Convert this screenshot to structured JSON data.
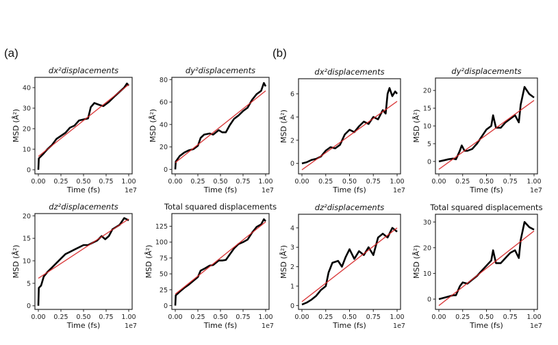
{
  "figure": {
    "panel_labels": [
      "(a)",
      "(b)"
    ]
  },
  "chart_data": [
    {
      "group": "(a)",
      "type": "line",
      "title": "dx²displacements",
      "title_italic": true,
      "xlabel": "Time (fs)",
      "ylabel": "MSD (Å²)",
      "x_offset_label": "1e7",
      "xlim": [
        0,
        1.0
      ],
      "ylim": [
        -2,
        45
      ],
      "xticks": [
        0.0,
        0.25,
        0.5,
        0.75,
        1.0
      ],
      "xtick_labels": [
        "0.00",
        "0.25",
        "0.50",
        "0.75",
        "1.00"
      ],
      "yticks": [
        0,
        10,
        20,
        30,
        40
      ],
      "ytick_labels": [
        "0",
        "10",
        "20",
        "30",
        "40"
      ],
      "series": [
        {
          "name": "MSD",
          "color": "#000000",
          "x": [
            0,
            0.005,
            0.05,
            0.1,
            0.15,
            0.2,
            0.25,
            0.3,
            0.35,
            0.4,
            0.45,
            0.5,
            0.55,
            0.58,
            0.62,
            0.68,
            0.72,
            0.78,
            0.85,
            0.9,
            0.95,
            0.98,
            1.0
          ],
          "y": [
            0,
            5.5,
            7.5,
            10,
            12,
            15,
            16.5,
            18,
            20.5,
            21.5,
            24,
            24.5,
            25,
            30.5,
            32.5,
            31.5,
            31,
            33,
            36,
            38,
            40,
            42,
            41
          ]
        },
        {
          "name": "Linear fit",
          "color": "#d62728",
          "x": [
            0,
            1.0
          ],
          "y": [
            6.5,
            41.5
          ]
        }
      ]
    },
    {
      "group": "(a)",
      "type": "line",
      "title": "dy²displacements",
      "title_italic": true,
      "xlabel": "Time (fs)",
      "ylabel": "MSD (Å²)",
      "x_offset_label": "1e7",
      "xlim": [
        0,
        1.0
      ],
      "ylim": [
        -4,
        82
      ],
      "xticks": [
        0.0,
        0.25,
        0.5,
        0.75,
        1.0
      ],
      "xtick_labels": [
        "0.00",
        "0.25",
        "0.50",
        "0.75",
        "1.00"
      ],
      "yticks": [
        0,
        20,
        40,
        60,
        80
      ],
      "ytick_labels": [
        "0",
        "20",
        "40",
        "60",
        "80"
      ],
      "series": [
        {
          "name": "MSD",
          "color": "#000000",
          "x": [
            0,
            0.005,
            0.05,
            0.1,
            0.15,
            0.2,
            0.25,
            0.28,
            0.32,
            0.38,
            0.42,
            0.48,
            0.52,
            0.56,
            0.6,
            0.65,
            0.7,
            0.75,
            0.8,
            0.85,
            0.9,
            0.95,
            0.98,
            1.0
          ],
          "y": [
            0,
            7,
            12,
            15,
            17,
            18,
            21,
            28,
            31,
            32,
            31,
            35,
            33,
            33,
            39,
            45,
            48,
            52,
            55,
            62,
            67,
            70,
            77,
            74
          ]
        },
        {
          "name": "Linear fit",
          "color": "#d62728",
          "x": [
            0,
            1.0
          ],
          "y": [
            6,
            70
          ]
        }
      ]
    },
    {
      "group": "(a)",
      "type": "line",
      "title": "dz²displacements",
      "title_italic": true,
      "xlabel": "Time (fs)",
      "ylabel": "MSD (Å²)",
      "x_offset_label": "1e7",
      "xlim": [
        0,
        1.0
      ],
      "ylim": [
        -0.8,
        20.5
      ],
      "xticks": [
        0.0,
        0.25,
        0.5,
        0.75,
        1.0
      ],
      "xtick_labels": [
        "0.00",
        "0.25",
        "0.50",
        "0.75",
        "1.00"
      ],
      "yticks": [
        0,
        5,
        10,
        15,
        20
      ],
      "ytick_labels": [
        "0",
        "5",
        "10",
        "15",
        "20"
      ],
      "series": [
        {
          "name": "MSD",
          "color": "#000000",
          "x": [
            0,
            0.005,
            0.03,
            0.06,
            0.1,
            0.15,
            0.2,
            0.25,
            0.3,
            0.35,
            0.4,
            0.45,
            0.5,
            0.55,
            0.6,
            0.65,
            0.7,
            0.74,
            0.78,
            0.82,
            0.86,
            0.9,
            0.95,
            1.0
          ],
          "y": [
            0,
            4,
            4.5,
            6.5,
            7.5,
            8.5,
            9.5,
            10.5,
            11.5,
            12,
            12.5,
            13,
            13.5,
            13.5,
            14,
            14.5,
            15.5,
            14.8,
            15.5,
            17,
            17.5,
            18,
            19.5,
            19
          ]
        },
        {
          "name": "Linear fit",
          "color": "#d62728",
          "x": [
            0,
            1.0
          ],
          "y": [
            6.1,
            19.3
          ]
        }
      ]
    },
    {
      "group": "(a)",
      "type": "line",
      "title": "Total squared displacements",
      "title_italic": false,
      "xlabel": "Time (fs)",
      "ylabel": "MSD (Å²)",
      "x_offset_label": "1e7",
      "xlim": [
        0,
        1.0
      ],
      "ylim": [
        -6,
        145
      ],
      "xticks": [
        0.0,
        0.25,
        0.5,
        0.75,
        1.0
      ],
      "xtick_labels": [
        "0.00",
        "0.25",
        "0.50",
        "0.75",
        "1.00"
      ],
      "yticks": [
        0,
        25,
        50,
        75,
        100,
        125
      ],
      "ytick_labels": [
        "0",
        "25",
        "50",
        "75",
        "100",
        "125"
      ],
      "series": [
        {
          "name": "MSD",
          "color": "#000000",
          "x": [
            0,
            0.005,
            0.05,
            0.1,
            0.15,
            0.2,
            0.25,
            0.28,
            0.32,
            0.38,
            0.42,
            0.48,
            0.52,
            0.56,
            0.6,
            0.65,
            0.7,
            0.75,
            0.8,
            0.85,
            0.9,
            0.95,
            0.98,
            1.0
          ],
          "y": [
            0,
            16,
            22,
            28,
            33,
            39,
            45,
            55,
            58,
            63,
            64,
            71,
            71,
            72,
            80,
            90,
            97,
            100,
            104,
            115,
            124,
            128,
            136,
            133
          ]
        },
        {
          "name": "Linear fit",
          "color": "#d62728",
          "x": [
            0,
            1.0
          ],
          "y": [
            18,
            132
          ]
        }
      ]
    },
    {
      "group": "(b)",
      "type": "line",
      "title": "dx²displacements",
      "title_italic": true,
      "xlabel": "Time (fs)",
      "ylabel": "MSD (Å²)",
      "x_offset_label": "1e7",
      "xlim": [
        0,
        1.0
      ],
      "ylim": [
        -0.9,
        7.3
      ],
      "xticks": [
        0.0,
        0.25,
        0.5,
        0.75,
        1.0
      ],
      "xtick_labels": [
        "0.00",
        "0.25",
        "0.50",
        "0.75",
        "1.00"
      ],
      "yticks": [
        0,
        2,
        4,
        6
      ],
      "ytick_labels": [
        "0",
        "2",
        "4",
        "6"
      ],
      "series": [
        {
          "name": "MSD",
          "color": "#000000",
          "x": [
            0,
            0.05,
            0.1,
            0.15,
            0.2,
            0.25,
            0.3,
            0.35,
            0.4,
            0.45,
            0.5,
            0.55,
            0.6,
            0.65,
            0.7,
            0.75,
            0.8,
            0.85,
            0.88,
            0.9,
            0.92,
            0.95,
            0.98,
            1.0
          ],
          "y": [
            0,
            0.1,
            0.3,
            0.4,
            0.6,
            1.1,
            1.4,
            1.3,
            1.6,
            2.5,
            2.9,
            2.7,
            3.2,
            3.6,
            3.4,
            4.0,
            3.8,
            4.6,
            4.3,
            6.0,
            6.5,
            5.8,
            6.2,
            6.0
          ]
        },
        {
          "name": "Linear fit",
          "color": "#d62728",
          "x": [
            0,
            1.0
          ],
          "y": [
            -0.55,
            5.35
          ]
        }
      ]
    },
    {
      "group": "(b)",
      "type": "line",
      "title": "dy²displacements",
      "title_italic": true,
      "xlabel": "Time (fs)",
      "ylabel": "MSD (Å²)",
      "x_offset_label": "1e7",
      "xlim": [
        0,
        1.0
      ],
      "ylim": [
        -3.5,
        23.5
      ],
      "xticks": [
        0.0,
        0.25,
        0.5,
        0.75,
        1.0
      ],
      "xtick_labels": [
        "0.00",
        "0.25",
        "0.50",
        "0.75",
        "1.00"
      ],
      "yticks": [
        0,
        5,
        10,
        15,
        20
      ],
      "ytick_labels": [
        "0",
        "5",
        "10",
        "15",
        "20"
      ],
      "series": [
        {
          "name": "MSD",
          "color": "#000000",
          "x": [
            0,
            0.05,
            0.1,
            0.15,
            0.18,
            0.22,
            0.24,
            0.27,
            0.3,
            0.35,
            0.4,
            0.45,
            0.5,
            0.55,
            0.57,
            0.6,
            0.65,
            0.7,
            0.75,
            0.8,
            0.84,
            0.86,
            0.9,
            0.95,
            1.0
          ],
          "y": [
            0,
            0.3,
            0.6,
            0.8,
            0.6,
            3,
            4.5,
            3,
            3,
            3.5,
            5,
            7,
            9,
            10,
            13,
            9.5,
            9.5,
            11,
            12,
            13,
            11,
            16,
            21,
            19,
            18
          ]
        },
        {
          "name": "Linear fit",
          "color": "#d62728",
          "x": [
            0,
            1.0
          ],
          "y": [
            -2.2,
            17.2
          ]
        }
      ]
    },
    {
      "group": "(b)",
      "type": "line",
      "title": "dz²displacements",
      "title_italic": true,
      "xlabel": "Time (fs)",
      "ylabel": "MSD (Å²)",
      "x_offset_label": "1e7",
      "xlim": [
        0,
        1.0
      ],
      "ylim": [
        -0.2,
        4.7
      ],
      "xticks": [
        0.0,
        0.25,
        0.5,
        0.75,
        1.0
      ],
      "xtick_labels": [
        "0.00",
        "0.25",
        "0.50",
        "0.75",
        "1.00"
      ],
      "yticks": [
        0,
        1,
        2,
        3,
        4
      ],
      "ytick_labels": [
        "0",
        "1",
        "2",
        "3",
        "4"
      ],
      "series": [
        {
          "name": "MSD",
          "color": "#000000",
          "x": [
            0,
            0.05,
            0.1,
            0.15,
            0.2,
            0.25,
            0.28,
            0.32,
            0.38,
            0.42,
            0.46,
            0.5,
            0.55,
            0.6,
            0.65,
            0.7,
            0.75,
            0.8,
            0.85,
            0.9,
            0.95,
            1.0
          ],
          "y": [
            0.05,
            0.15,
            0.3,
            0.5,
            0.8,
            1.0,
            1.7,
            2.2,
            2.3,
            2.0,
            2.5,
            2.9,
            2.4,
            2.8,
            2.6,
            3.0,
            2.6,
            3.5,
            3.7,
            3.5,
            4.0,
            3.8
          ]
        },
        {
          "name": "Linear fit",
          "color": "#d62728",
          "x": [
            0,
            1.0
          ],
          "y": [
            0.2,
            4.0
          ]
        }
      ]
    },
    {
      "group": "(b)",
      "type": "line",
      "title": "Total squared displacements",
      "title_italic": false,
      "xlabel": "Time (fs)",
      "ylabel": "MSD (Å²)",
      "x_offset_label": "1e7",
      "xlim": [
        0,
        1.0
      ],
      "ylim": [
        -4,
        33
      ],
      "xticks": [
        0.0,
        0.25,
        0.5,
        0.75,
        1.0
      ],
      "xtick_labels": [
        "0.00",
        "0.25",
        "0.50",
        "0.75",
        "1.00"
      ],
      "yticks": [
        0,
        10,
        20,
        30
      ],
      "ytick_labels": [
        "0",
        "10",
        "20",
        "30"
      ],
      "series": [
        {
          "name": "MSD",
          "color": "#000000",
          "x": [
            0,
            0.05,
            0.1,
            0.15,
            0.18,
            0.22,
            0.25,
            0.3,
            0.35,
            0.4,
            0.45,
            0.5,
            0.55,
            0.57,
            0.6,
            0.65,
            0.7,
            0.75,
            0.8,
            0.84,
            0.86,
            0.9,
            0.95,
            1.0
          ],
          "y": [
            0,
            0.5,
            1,
            1.5,
            1.5,
            5,
            6.5,
            6,
            7.5,
            9,
            11,
            13,
            15,
            19,
            14,
            14,
            16,
            18,
            19,
            16,
            23,
            30,
            28,
            27
          ]
        },
        {
          "name": "Linear fit",
          "color": "#d62728",
          "x": [
            0,
            1.0
          ],
          "y": [
            -2.5,
            26.5
          ]
        }
      ]
    }
  ]
}
